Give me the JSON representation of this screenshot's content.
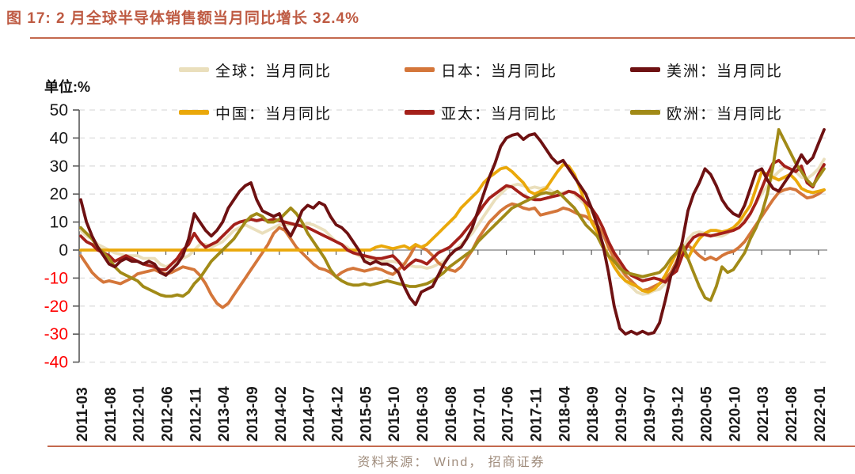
{
  "title": "图 17:  2 月全球半导体销售额当月同比增长 32.4%",
  "unit_label": "单位:%",
  "source": "资料来源： Wind， 招商证券",
  "styles": {
    "title_color": "#BE5A42",
    "rule_color": "#C4694E",
    "negative_tick_color": "#FF0000",
    "positive_tick_color": "#1a1a1a",
    "gridline_color": "#DCDCDC",
    "axis_color": "#595959"
  },
  "chart_data": {
    "type": "line",
    "title": "2 月全球半导体销售额当月同比增长 32.4%",
    "ylabel": "单位:%",
    "ylim": [
      -40,
      50
    ],
    "y_ticks": [
      50,
      40,
      30,
      20,
      10,
      0,
      -10,
      -20,
      -30,
      -40
    ],
    "grid": "dashed-horizontal",
    "legend_position": "top",
    "x_start": "2011-03",
    "x_end": "2022-02",
    "x_interval_months": 1,
    "x_labels": [
      "2011-03",
      "2011-08",
      "2012-01",
      "2012-06",
      "2012-11",
      "2013-04",
      "2013-09",
      "2014-02",
      "2014-07",
      "2014-12",
      "2015-05",
      "2015-10",
      "2016-03",
      "2016-08",
      "2017-01",
      "2017-06",
      "2017-11",
      "2018-04",
      "2018-09",
      "2019-02",
      "2019-07",
      "2019-12",
      "2020-05",
      "2020-10",
      "2021-03",
      "2021-08",
      "2022-01"
    ],
    "draw_order": [
      0,
      1,
      3,
      4,
      5,
      2
    ],
    "series": [
      {
        "key": "global",
        "name": "全球：当月同比",
        "color": "#EADFBC",
        "values": [
          7,
          5,
          4,
          2,
          1,
          0,
          -1,
          -1.5,
          -2,
          -2,
          -2,
          -3,
          -3,
          -3,
          -5,
          -6,
          -5,
          -4,
          -3,
          -2,
          0,
          2,
          2,
          1,
          2,
          3,
          5,
          7,
          8,
          9,
          8,
          7,
          6,
          7,
          8,
          9,
          9,
          9,
          9,
          9,
          9.5,
          9,
          8,
          7,
          5,
          3,
          2,
          1,
          -1,
          -2,
          -3,
          -3.5,
          -4,
          -4,
          -4,
          -4,
          -4.5,
          -5,
          -5.5,
          -6,
          -6,
          -6.5,
          -6,
          -5,
          -4,
          -2,
          0,
          2,
          4,
          6,
          9,
          12,
          15,
          18,
          20,
          22,
          23,
          23.5,
          23,
          22,
          22.5,
          22,
          22.5,
          21,
          20,
          20.5,
          21,
          20,
          18,
          16,
          13.5,
          12,
          8,
          2,
          -3,
          -8,
          -11,
          -13,
          -15,
          -15.8,
          -15.5,
          -14.5,
          -14,
          -12,
          -8,
          -5,
          0,
          4,
          6,
          6.5,
          6,
          5.5,
          5,
          5,
          6,
          8,
          9,
          11,
          13,
          17,
          20,
          23,
          26,
          28,
          29.5,
          29,
          28,
          26,
          25.5,
          27,
          29,
          32.4
        ]
      },
      {
        "key": "japan",
        "name": "日本：当月同比",
        "color": "#D4763A",
        "values": [
          -2,
          -5,
          -8,
          -10,
          -11.5,
          -11,
          -11.5,
          -12,
          -11,
          -10,
          -8.5,
          -8,
          -7.5,
          -7,
          -8,
          -8.5,
          -8,
          -7,
          -6,
          -6.5,
          -7,
          -9,
          -12,
          -16,
          -19,
          -20.5,
          -19,
          -16,
          -13,
          -10,
          -7,
          -4,
          -1,
          2,
          6,
          8,
          7,
          4,
          1,
          -1,
          -3,
          -5,
          -6.5,
          -7,
          -8,
          -9.5,
          -8,
          -7,
          -6.5,
          -7,
          -7.5,
          -7,
          -6.5,
          -7,
          -8,
          -8.7,
          -7,
          -5,
          -2,
          1.7,
          1,
          0,
          -2,
          -4.5,
          -6,
          -7,
          -7.6,
          -6,
          -3,
          0,
          4,
          7,
          10,
          12,
          14,
          15.5,
          16.5,
          16,
          15,
          14.5,
          15,
          12.5,
          13,
          13.5,
          14,
          15,
          14.5,
          13.5,
          12.5,
          12,
          10.5,
          9,
          6,
          1,
          -3,
          -6,
          -9,
          -11,
          -13,
          -14.4,
          -14,
          -13,
          -12,
          -10.5,
          -8,
          -4,
          0,
          1.7,
          0,
          -2,
          -3.5,
          -2.5,
          -3.5,
          -2,
          -1,
          -0.5,
          1,
          3,
          6,
          9,
          12,
          15,
          18,
          20.6,
          21.5,
          22,
          21.5,
          20,
          18.6,
          19,
          20,
          21.5
        ]
      },
      {
        "key": "americas",
        "name": "美洲：当月同比",
        "color": "#6E1112",
        "values": [
          18,
          10,
          5,
          1,
          -2,
          -5,
          -6,
          -4,
          -3,
          -4,
          -4,
          -5,
          -4,
          -5,
          -8,
          -9,
          -7,
          -5,
          -2,
          4,
          13,
          10,
          7,
          5,
          7,
          10,
          15,
          18,
          21,
          23,
          24,
          18,
          14,
          13,
          12,
          13,
          8,
          5,
          9,
          14,
          16,
          15,
          17,
          16,
          12,
          9,
          8,
          6,
          3,
          0,
          -4,
          -5,
          -4,
          -5,
          -5,
          -6,
          -8,
          -13,
          -17,
          -19.5,
          -15,
          -14,
          -13,
          -9,
          -5,
          -2,
          0,
          1,
          4,
          8,
          14,
          20,
          26,
          31,
          37,
          40,
          41,
          41.5,
          39.5,
          41,
          41.5,
          39,
          36,
          33,
          31,
          32,
          29,
          26,
          23,
          20,
          15,
          9,
          2,
          -8,
          -20,
          -28,
          -30,
          -29,
          -30,
          -29,
          -30,
          -29.5,
          -26,
          -18,
          -9,
          -5,
          3,
          14,
          20,
          24,
          29,
          27,
          23,
          18,
          15,
          13,
          12,
          16,
          22,
          28,
          29,
          25,
          22,
          21,
          24,
          27,
          30,
          34,
          31,
          33,
          38,
          43
        ]
      },
      {
        "key": "china",
        "name": "中国：当月同比",
        "color": "#EAA80A",
        "values": [
          0,
          0,
          0,
          0,
          0,
          0,
          0,
          0,
          0,
          0,
          0,
          0,
          0,
          0,
          0,
          0,
          0,
          0,
          0,
          0,
          0,
          0,
          0,
          0,
          0,
          0,
          0,
          0,
          0,
          0,
          0,
          0,
          0,
          0,
          0,
          0,
          0,
          0,
          0,
          0,
          0,
          0,
          0,
          0,
          0,
          0,
          0,
          0,
          0,
          0,
          0,
          0,
          1,
          1.5,
          1,
          0.5,
          1,
          1.5,
          0.5,
          2,
          1,
          2,
          4,
          6,
          8,
          10,
          12,
          15,
          17,
          19,
          21,
          24,
          26,
          27.5,
          29,
          29.5,
          28,
          26,
          24,
          21,
          20,
          21,
          22,
          25,
          28,
          30.5,
          30,
          27,
          22,
          16,
          10,
          6.5,
          2,
          -2,
          -6,
          -9,
          -11,
          -12,
          -13,
          -14.5,
          -15,
          -14,
          -12,
          -9,
          -5,
          -1,
          -1,
          -3,
          1,
          4,
          6,
          7,
          7,
          6.5,
          7,
          8,
          10,
          13,
          16,
          22,
          28,
          27,
          26,
          25,
          26,
          27,
          25,
          22,
          21,
          20.5,
          21,
          21.5
        ]
      },
      {
        "key": "apac",
        "name": "亚太：当月同比",
        "color": "#A4201A",
        "values": [
          5,
          3,
          2,
          0,
          -1,
          -2,
          -4,
          -3,
          -2,
          -3,
          -4,
          -5,
          -5.5,
          -6,
          -7,
          -7,
          -5,
          -3,
          0,
          2,
          6,
          3,
          1,
          2,
          3,
          5,
          7,
          9,
          10,
          10.5,
          11,
          10.5,
          11,
          10.5,
          11,
          10.5,
          10,
          9.5,
          9,
          8.5,
          8,
          7,
          6,
          5,
          4,
          3,
          2,
          0,
          -1,
          -1.5,
          -2,
          -2.5,
          -3,
          -3,
          -2.5,
          -2,
          -4,
          -6.8,
          -5,
          -3.5,
          -4,
          -5,
          -3,
          -1,
          0,
          1,
          3,
          5,
          7.5,
          10,
          13,
          16,
          18.5,
          20,
          21.5,
          23,
          22.5,
          21,
          19.5,
          18.5,
          18,
          18,
          18.5,
          19,
          19.5,
          20,
          21,
          20.5,
          19,
          17,
          15,
          12,
          8,
          3,
          -1,
          -4,
          -7,
          -9,
          -10,
          -11,
          -10.5,
          -10,
          -10.5,
          -11.5,
          -9,
          -7.5,
          -2,
          2,
          4.5,
          5.5,
          5.5,
          5,
          5.5,
          6,
          6.5,
          7,
          8,
          10,
          13,
          17,
          22,
          27,
          31,
          32,
          30,
          29,
          28,
          30,
          24,
          22.5,
          27,
          30.5
        ]
      },
      {
        "key": "europe",
        "name": "欧洲：当月同比",
        "color": "#A18A17",
        "values": [
          8,
          6,
          4,
          1,
          -1,
          -3,
          -6,
          -8,
          -9,
          -10,
          -11,
          -13,
          -14,
          -15,
          -16,
          -16.5,
          -16.5,
          -16,
          -16.5,
          -15,
          -12,
          -10,
          -7,
          -4,
          -2,
          0,
          2,
          4,
          7,
          10,
          12,
          13,
          12,
          10,
          10,
          11,
          13,
          15,
          13,
          10,
          6,
          3,
          0,
          -3,
          -7,
          -9.6,
          -11,
          -12,
          -12.5,
          -12.5,
          -12,
          -12.5,
          -12,
          -11.5,
          -11,
          -11.5,
          -12,
          -12.5,
          -13,
          -13,
          -12.5,
          -12,
          -11,
          -9.5,
          -8,
          -6,
          -4.5,
          -3,
          -1.5,
          0,
          3,
          5,
          7,
          9,
          11,
          13,
          15,
          16,
          17,
          18,
          19,
          20,
          20.5,
          20,
          21,
          19,
          17,
          15,
          12,
          9,
          7,
          5,
          1,
          -2,
          -4,
          -6.5,
          -8,
          -8.5,
          -9,
          -9.5,
          -9,
          -8.5,
          -8,
          -6,
          -3,
          -1,
          2,
          -3,
          -8,
          -13,
          -17,
          -18,
          -13,
          -6,
          -8,
          -7,
          -4,
          -1,
          4,
          8,
          13,
          20,
          30,
          43,
          39,
          35,
          31,
          28,
          25,
          23,
          26,
          29
        ]
      }
    ]
  }
}
